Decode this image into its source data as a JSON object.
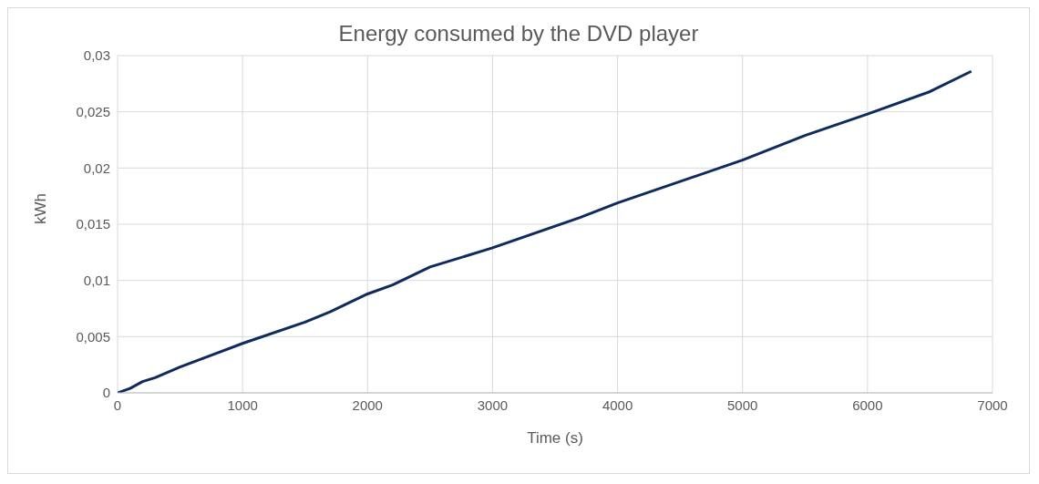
{
  "chart_data": {
    "type": "line",
    "title": "Energy consumed by the DVD player",
    "xlabel": "Time (s)",
    "ylabel": "kWh",
    "x": [
      0,
      100,
      200,
      300,
      500,
      1000,
      1500,
      1700,
      2000,
      2200,
      2500,
      3000,
      3700,
      4000,
      4500,
      5000,
      5500,
      6000,
      6500,
      6830
    ],
    "series": [
      {
        "color": "#0e2a5e",
        "values": [
          0,
          0.0004,
          0.001,
          0.00135,
          0.0023,
          0.0044,
          0.0063,
          0.0072,
          0.0088,
          0.0096,
          0.0112,
          0.0129,
          0.0156,
          0.0169,
          0.0188,
          0.0207,
          0.0229,
          0.0248,
          0.0268,
          0.0286
        ]
      }
    ],
    "xlim": [
      0,
      7000
    ],
    "xticks": [
      0,
      1000,
      2000,
      3000,
      4000,
      5000,
      6000,
      7000
    ],
    "ylim": [
      0,
      0.03
    ],
    "yticks": [
      {
        "value": 0,
        "label": "0"
      },
      {
        "value": 0.005,
        "label": "0,005"
      },
      {
        "value": 0.01,
        "label": "0,01"
      },
      {
        "value": 0.015,
        "label": "0,015"
      },
      {
        "value": 0.02,
        "label": "0,02"
      },
      {
        "value": 0.025,
        "label": "0,025"
      },
      {
        "value": 0.03,
        "label": "0,03"
      }
    ],
    "grid": true,
    "legend": false,
    "marker": "none",
    "line_style": "solid"
  }
}
